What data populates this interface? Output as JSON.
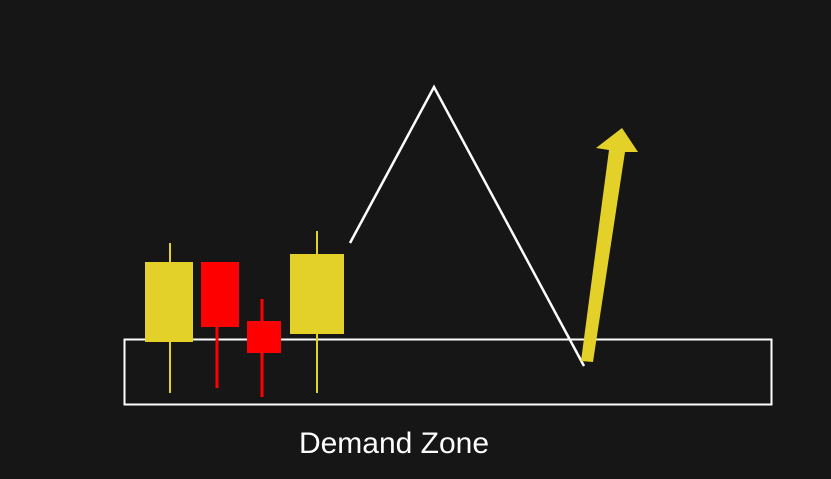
{
  "zone": {
    "label": "Demand Zone"
  }
}
